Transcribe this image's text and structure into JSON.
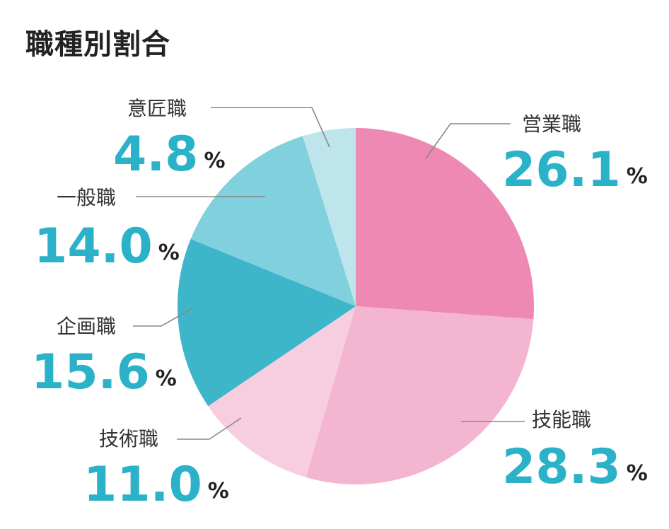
{
  "chart_data": {
    "type": "pie",
    "title": "職種別割合",
    "unit": "%",
    "start_angle_deg": 0,
    "direction": "clockwise",
    "slices": [
      {
        "label": "営業職",
        "value": 26.1,
        "display": "26.1",
        "color": "#ee89b4"
      },
      {
        "label": "技能職",
        "value": 28.3,
        "display": "28.3",
        "color": "#f4b5d1"
      },
      {
        "label": "技術職",
        "value": 11.0,
        "display": "11.0",
        "color": "#f7cde0"
      },
      {
        "label": "企画職",
        "value": 15.6,
        "display": "15.6",
        "color": "#3db6ca"
      },
      {
        "label": "一般職",
        "value": 14.0,
        "display": "14.0",
        "color": "#80d0dd"
      },
      {
        "label": "意匠職",
        "value": 4.8,
        "display": "4.8",
        "color": "#bfe5ec"
      }
    ]
  }
}
